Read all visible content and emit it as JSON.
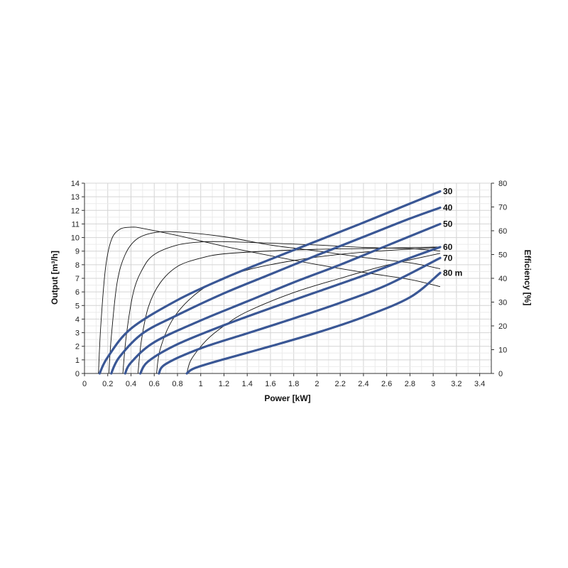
{
  "chart_data": {
    "type": "line",
    "xlabel": "Power [kW]",
    "ylabel": "Output [m³/h]",
    "y2label": "Efficiency [%]",
    "xlim": [
      0,
      3.5
    ],
    "ylim": [
      0,
      14
    ],
    "y2lim": [
      0,
      80
    ],
    "xticks": [
      "0",
      "0.2",
      "0.4",
      "0.6",
      "0.8",
      "1",
      "1.2",
      "1.4",
      "1.6",
      "1.8",
      "2",
      "2.2",
      "2.4",
      "2.6",
      "2.8",
      "3",
      "3.2",
      "3.4"
    ],
    "yticks": [
      "0",
      "1",
      "2",
      "3",
      "4",
      "5",
      "6",
      "7",
      "8",
      "9",
      "10",
      "11",
      "12",
      "13",
      "14"
    ],
    "y2ticks": [
      "0",
      "10",
      "20",
      "30",
      "40",
      "50",
      "60",
      "70",
      "80"
    ],
    "grid": true,
    "colors": {
      "output": "#3a5795",
      "efficiency": "#111111",
      "grid": "#dcdcdc"
    },
    "output_series": [
      {
        "label": "30",
        "points": [
          [
            0.13,
            0
          ],
          [
            0.2,
            1.2
          ],
          [
            0.4,
            3.3
          ],
          [
            0.8,
            5.4
          ],
          [
            1.2,
            7.0
          ],
          [
            1.6,
            8.4
          ],
          [
            2.0,
            9.75
          ],
          [
            2.4,
            11.1
          ],
          [
            2.8,
            12.5
          ],
          [
            3.06,
            13.4
          ]
        ]
      },
      {
        "label": "40",
        "points": [
          [
            0.23,
            0
          ],
          [
            0.3,
            1.2
          ],
          [
            0.5,
            2.95
          ],
          [
            0.8,
            4.3
          ],
          [
            1.2,
            5.9
          ],
          [
            1.6,
            7.3
          ],
          [
            2.0,
            8.7
          ],
          [
            2.4,
            10.05
          ],
          [
            2.8,
            11.4
          ],
          [
            3.06,
            12.2
          ]
        ]
      },
      {
        "label": "50",
        "points": [
          [
            0.35,
            0
          ],
          [
            0.4,
            0.8
          ],
          [
            0.6,
            2.3
          ],
          [
            1.0,
            3.9
          ],
          [
            1.4,
            5.3
          ],
          [
            1.8,
            6.7
          ],
          [
            2.2,
            8.0
          ],
          [
            2.6,
            9.4
          ],
          [
            3.06,
            11.0
          ]
        ]
      },
      {
        "label": "60",
        "points": [
          [
            0.48,
            0
          ],
          [
            0.55,
            0.9
          ],
          [
            0.8,
            2.15
          ],
          [
            1.2,
            3.55
          ],
          [
            1.6,
            4.8
          ],
          [
            2.0,
            6.0
          ],
          [
            2.4,
            7.2
          ],
          [
            2.8,
            8.5
          ],
          [
            3.06,
            9.3
          ]
        ]
      },
      {
        "label": "70",
        "points": [
          [
            0.64,
            0
          ],
          [
            0.7,
            0.7
          ],
          [
            1.0,
            1.85
          ],
          [
            1.4,
            2.95
          ],
          [
            1.8,
            4.05
          ],
          [
            2.2,
            5.2
          ],
          [
            2.6,
            6.5
          ],
          [
            3.06,
            8.5
          ]
        ]
      },
      {
        "label": "80 m",
        "points": [
          [
            0.88,
            0
          ],
          [
            0.95,
            0.4
          ],
          [
            1.2,
            1.05
          ],
          [
            1.6,
            2.0
          ],
          [
            2.0,
            3.0
          ],
          [
            2.4,
            4.15
          ],
          [
            2.8,
            5.6
          ],
          [
            3.06,
            7.4
          ]
        ]
      }
    ],
    "efficiency_series": [
      {
        "head": "30",
        "points": [
          [
            0.12,
            0
          ],
          [
            0.14,
            20
          ],
          [
            0.18,
            44
          ],
          [
            0.23,
            56
          ],
          [
            0.3,
            60.5
          ],
          [
            0.4,
            61.5
          ],
          [
            0.5,
            61
          ],
          [
            0.8,
            58
          ],
          [
            1.2,
            53.5
          ],
          [
            1.6,
            49.5
          ],
          [
            2.0,
            45.8
          ],
          [
            2.4,
            42.5
          ],
          [
            2.8,
            39.5
          ],
          [
            3.06,
            36.5
          ]
        ]
      },
      {
        "head": "40",
        "points": [
          [
            0.21,
            0
          ],
          [
            0.23,
            15
          ],
          [
            0.28,
            38
          ],
          [
            0.35,
            50
          ],
          [
            0.45,
            56.5
          ],
          [
            0.6,
            59.2
          ],
          [
            0.8,
            59.5
          ],
          [
            1.2,
            57.5
          ],
          [
            1.6,
            54
          ],
          [
            2.0,
            51.5
          ],
          [
            2.4,
            48.8
          ],
          [
            2.8,
            46.5
          ],
          [
            3.06,
            44
          ]
        ]
      },
      {
        "head": "50",
        "points": [
          [
            0.33,
            0
          ],
          [
            0.36,
            16
          ],
          [
            0.42,
            34
          ],
          [
            0.5,
            44
          ],
          [
            0.6,
            50
          ],
          [
            0.8,
            54
          ],
          [
            1.0,
            55.3
          ],
          [
            1.2,
            55.4
          ],
          [
            1.6,
            54.8
          ],
          [
            2.0,
            54
          ],
          [
            2.4,
            53
          ],
          [
            2.8,
            52.5
          ],
          [
            3.06,
            51.5
          ]
        ]
      },
      {
        "head": "60",
        "points": [
          [
            0.46,
            0
          ],
          [
            0.49,
            14
          ],
          [
            0.55,
            28
          ],
          [
            0.65,
            38
          ],
          [
            0.8,
            45
          ],
          [
            1.0,
            48.5
          ],
          [
            1.2,
            50.3
          ],
          [
            1.6,
            51.5
          ],
          [
            2.0,
            52.2
          ],
          [
            2.4,
            52.5
          ],
          [
            3.06,
            53.2
          ]
        ]
      },
      {
        "head": "70",
        "points": [
          [
            0.62,
            0
          ],
          [
            0.65,
            10
          ],
          [
            0.75,
            22
          ],
          [
            0.9,
            31
          ],
          [
            1.1,
            38
          ],
          [
            1.4,
            43.5
          ],
          [
            1.8,
            47.5
          ],
          [
            2.2,
            50.1
          ],
          [
            2.6,
            51.7
          ],
          [
            3.06,
            53
          ]
        ]
      },
      {
        "head": "80 m",
        "points": [
          [
            0.88,
            0
          ],
          [
            0.92,
            6
          ],
          [
            1.05,
            14
          ],
          [
            1.2,
            20
          ],
          [
            1.4,
            26
          ],
          [
            1.8,
            34
          ],
          [
            2.2,
            40
          ],
          [
            2.6,
            45.5
          ],
          [
            3.06,
            50.5
          ]
        ]
      }
    ]
  }
}
